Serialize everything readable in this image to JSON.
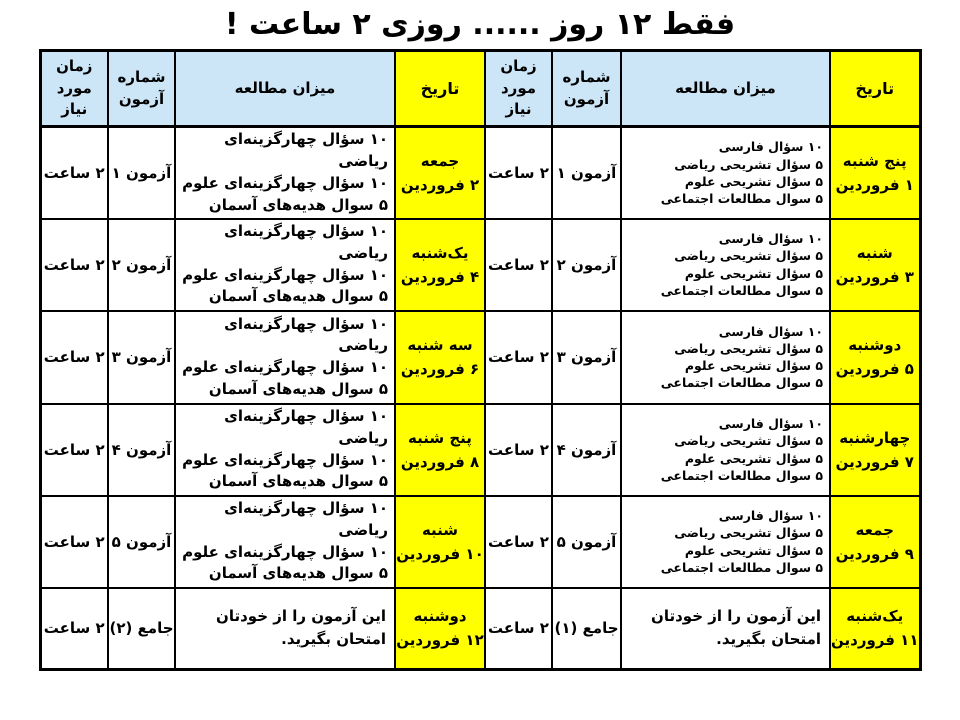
{
  "page": {
    "title": "فقط ۱۲ روز ...... روزی ۲ ساعت !"
  },
  "colors": {
    "header_blue": "#cce6f7",
    "date_yellow": "#ffff00",
    "border_black": "#000000",
    "text_black": "#000000",
    "page_bg": "#ffffff"
  },
  "headers": {
    "date": "تاریخ",
    "study": "میزان مطالعه",
    "exam": [
      "شماره",
      "آزمون"
    ],
    "time": [
      "زمان",
      "مورد نیاز"
    ]
  },
  "right_half": {
    "rows": [
      {
        "day": "پنج شنبه",
        "date": "۱ فروردین",
        "study": [
          "۱۰ سؤال فارسی",
          "۵ سؤال تشریحی ریاضی",
          "۵ سؤال تشریحی علوم",
          "۵ سوال مطالعات اجتماعی"
        ],
        "exam": "آزمون ۱",
        "time": "۲ ساعت"
      },
      {
        "day": "شنبه",
        "date": "۳ فروردین",
        "study": [
          "۱۰ سؤال فارسی",
          "۵ سؤال تشریحی ریاضی",
          "۵ سؤال تشریحی علوم",
          "۵ سوال مطالعات اجتماعی"
        ],
        "exam": "آزمون ۲",
        "time": "۲ ساعت"
      },
      {
        "day": "دوشنبه",
        "date": "۵ فروردین",
        "study": [
          "۱۰ سؤال فارسی",
          "۵ سؤال تشریحی ریاضی",
          "۵ سؤال تشریحی علوم",
          "۵ سوال مطالعات اجتماعی"
        ],
        "exam": "آزمون ۳",
        "time": "۲ ساعت"
      },
      {
        "day": "چهارشنبه",
        "date": "۷ فروردین",
        "study": [
          "۱۰ سؤال فارسی",
          "۵ سؤال تشریحی ریاضی",
          "۵ سؤال تشریحی علوم",
          "۵ سوال مطالعات اجتماعی"
        ],
        "exam": "آزمون ۴",
        "time": "۲ ساعت"
      },
      {
        "day": "جمعه",
        "date": "۹ فروردین",
        "study": [
          "۱۰ سؤال فارسی",
          "۵ سؤال تشریحی ریاضی",
          "۵ سؤال تشریحی علوم",
          "۵ سوال مطالعات اجتماعی"
        ],
        "exam": "آزمون ۵",
        "time": "۲ ساعت"
      },
      {
        "day": "یک‌شنبه",
        "date": "۱۱ فروردین",
        "study": [
          "این آزمون را از خودتان امتحان بگیرید."
        ],
        "exam": "جامع (۱)",
        "time": "۲ ساعت"
      }
    ]
  },
  "left_half": {
    "rows": [
      {
        "day": "جمعه",
        "date": "۲ فروردین",
        "study": [
          "۱۰ سؤال چهارگزینه‌ای ریاضی",
          "۱۰ سؤال چهارگزینه‌ای علوم",
          "۵ سوال هدیه‌های آسمان"
        ],
        "exam": "آزمون ۱",
        "time": "۲ ساعت"
      },
      {
        "day": "یک‌شنبه",
        "date": "۴ فروردین",
        "study": [
          "۱۰ سؤال چهارگزینه‌ای ریاضی",
          "۱۰ سؤال چهارگزینه‌ای علوم",
          "۵ سوال هدیه‌های آسمان"
        ],
        "exam": "آزمون ۲",
        "time": "۲ ساعت"
      },
      {
        "day": "سه شنبه",
        "date": "۶ فروردین",
        "study": [
          "۱۰ سؤال چهارگزینه‌ای ریاضی",
          "۱۰ سؤال چهارگزینه‌ای علوم",
          "۵ سوال هدیه‌های آسمان"
        ],
        "exam": "آزمون ۳",
        "time": "۲ ساعت"
      },
      {
        "day": "پنج شنبه",
        "date": "۸ فروردین",
        "study": [
          "۱۰ سؤال چهارگزینه‌ای ریاضی",
          "۱۰ سؤال چهارگزینه‌ای علوم",
          "۵ سوال هدیه‌های آسمان"
        ],
        "exam": "آزمون ۴",
        "time": "۲ ساعت"
      },
      {
        "day": "شنبه",
        "date": "۱۰ فروردین",
        "study": [
          "۱۰ سؤال چهارگزینه‌ای ریاضی",
          "۱۰ سؤال چهارگزینه‌ای علوم",
          "۵ سوال هدیه‌های آسمان"
        ],
        "exam": "آزمون ۵",
        "time": "۲ ساعت"
      },
      {
        "day": "دوشنبه",
        "date": "۱۲ فروردین",
        "study": [
          "این آزمون را از خودتان امتحان بگیرید."
        ],
        "exam": "جامع (۲)",
        "time": "۲ ساعت"
      }
    ]
  }
}
